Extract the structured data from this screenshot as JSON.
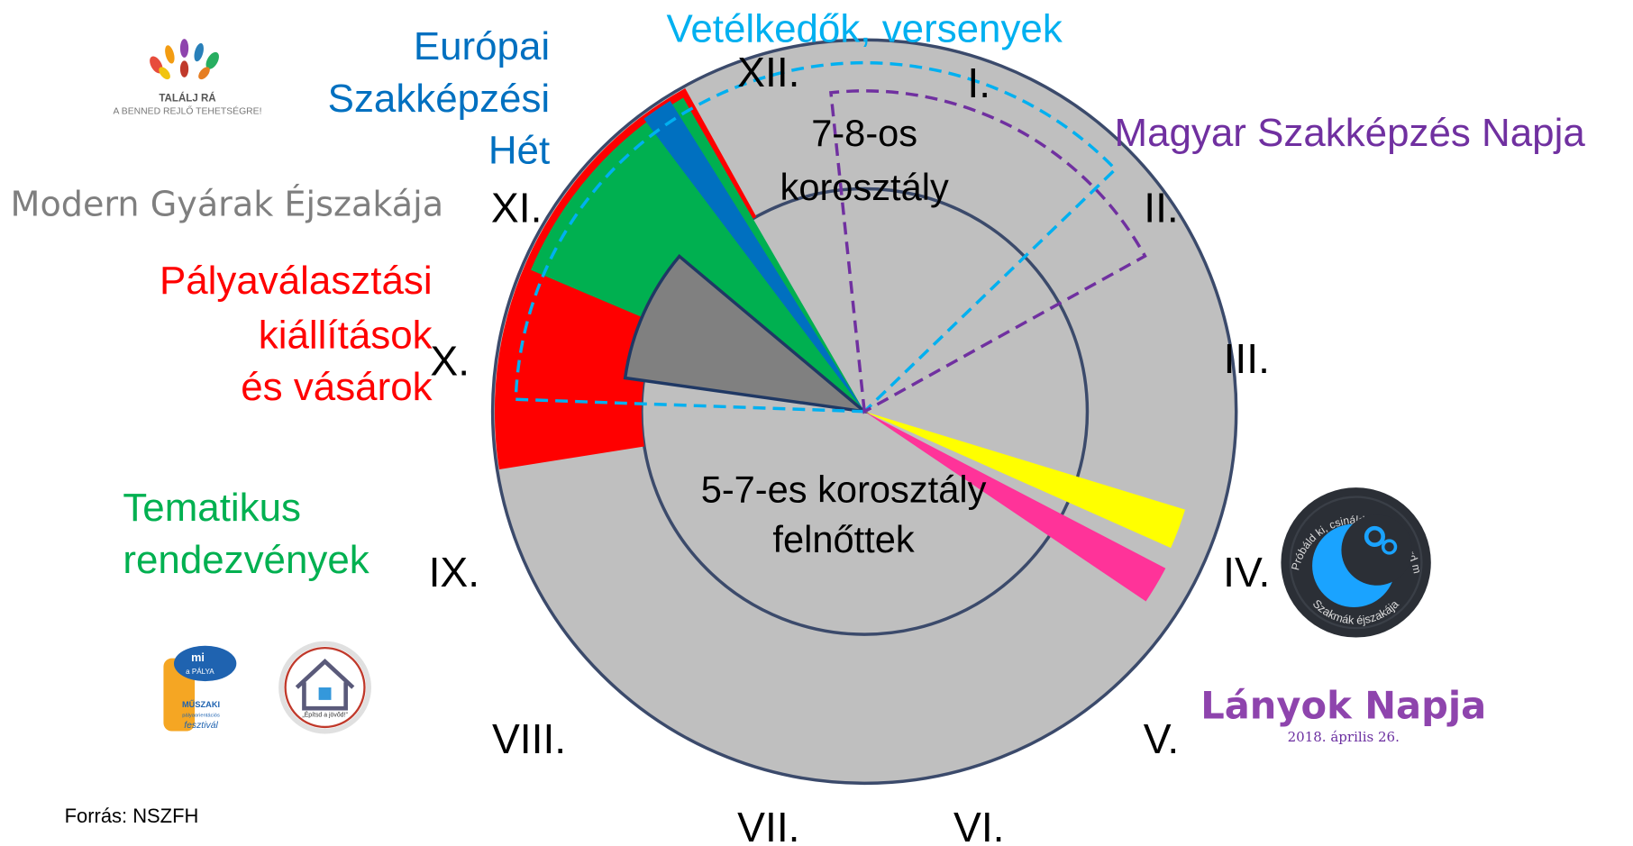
{
  "events": {
    "competitions": "Vetélkedők, versenyek",
    "european_week": [
      "Európai",
      "Szakképzési",
      "Hét"
    ],
    "hungarian_day": "Magyar Szakképzés Napja",
    "modern_factories": "Modern Gyárak Éjszakája",
    "fairs": [
      "Pályaválasztási",
      "kiállítások",
      "és vásárok"
    ],
    "thematic": [
      "Tematikus",
      "rendezvények"
    ]
  },
  "months": [
    "I.",
    "II.",
    "III.",
    "IV.",
    "V.",
    "VI.",
    "VII.",
    "VIII.",
    "IX.",
    "X.",
    "XI.",
    "XII."
  ],
  "age_groups": {
    "upper": [
      "7-8-os",
      "korosztály"
    ],
    "lower": [
      "5-7-es korosztály",
      "felnőttek"
    ]
  },
  "logos": {
    "talalj_ra": [
      "TALÁLJ RÁ",
      "A BENNED REJLŐ TEHETSÉGRE!"
    ],
    "mi_a_palya": [
      "mi",
      "a PÁLYA",
      "MŰSZAKI",
      "pályaorientációs",
      "fesztivál"
    ],
    "epitsd": "„Építsd a jövőd!”",
    "szakmak_ejszakaja": [
      "Próbáld ki, csináld meg, ismerd meg!",
      "Szakmák éjszakája"
    ],
    "lanyok_napja": [
      "Lányok Napja",
      "2018. április 26."
    ]
  },
  "source": "Forrás: NSZFH"
}
